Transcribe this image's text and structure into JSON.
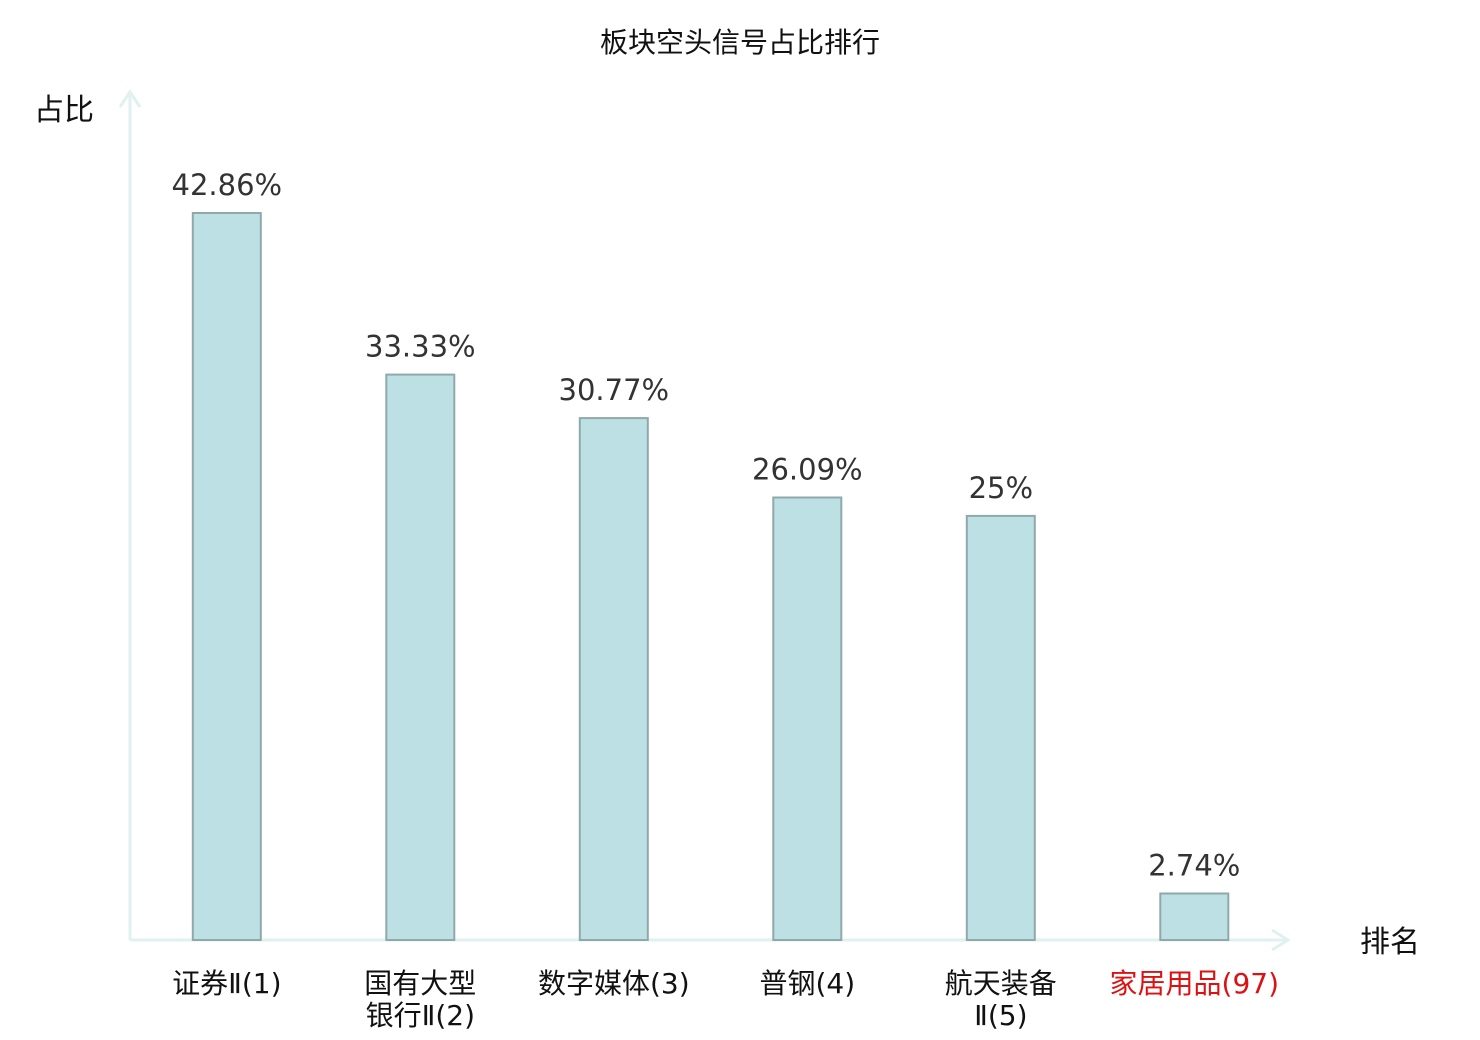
{
  "chart_data": {
    "type": "bar",
    "title": "板块空头信号占比排行",
    "ylabel": "占比",
    "xlabel": "排名",
    "ylim": [
      0,
      50
    ],
    "grid": false,
    "categories": [
      {
        "lines": [
          "证券Ⅱ(1)"
        ],
        "highlight": false
      },
      {
        "lines": [
          "国有大型",
          "银行Ⅱ(2)"
        ],
        "highlight": false
      },
      {
        "lines": [
          "数字媒体(3)"
        ],
        "highlight": false
      },
      {
        "lines": [
          "普钢(4)"
        ],
        "highlight": false
      },
      {
        "lines": [
          "航天装备",
          "Ⅱ(5)"
        ],
        "highlight": false
      },
      {
        "lines": [
          "家居用品(97)"
        ],
        "highlight": true
      }
    ],
    "values": [
      42.86,
      33.33,
      30.77,
      26.09,
      25,
      2.74
    ],
    "value_labels": [
      "42.86%",
      "33.33%",
      "30.77%",
      "26.09%",
      "25%",
      "2.74%"
    ],
    "colors": {
      "bar_fill": "#bce0e3",
      "bar_stroke": "#8fa9ab",
      "axis": "#dff2ef",
      "highlight_text": "#dd1111",
      "normal_text": "#111111"
    }
  }
}
